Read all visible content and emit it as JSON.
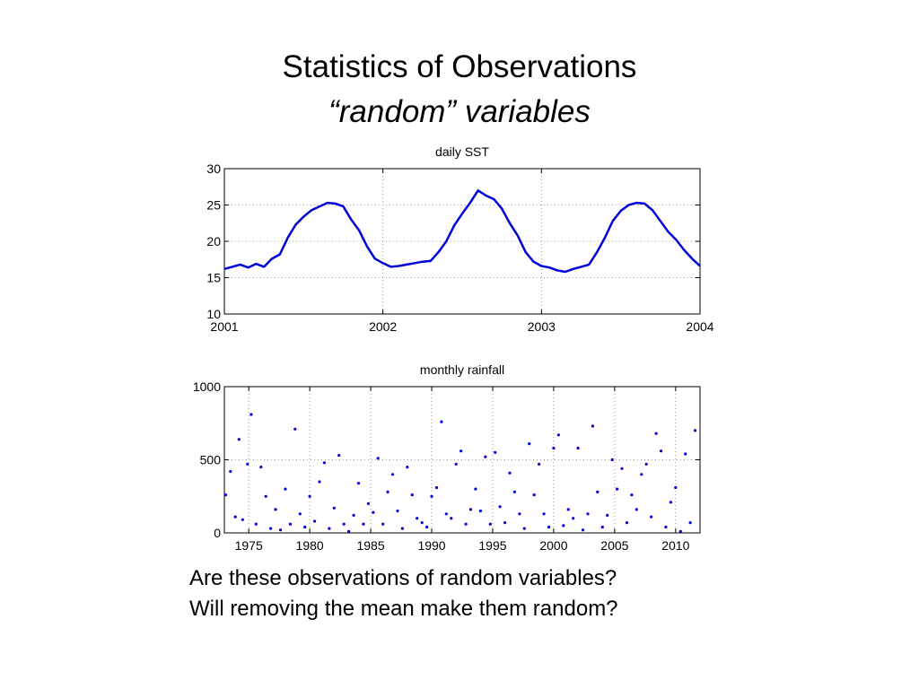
{
  "slide": {
    "title_line1": "Statistics of Observations",
    "title_line2": "“random” variables",
    "question1": "Are these observations of random variables?",
    "question2": "Will removing the mean make them random?"
  },
  "chart_data": [
    {
      "type": "line",
      "title": "daily SST",
      "xlabel": "",
      "ylabel": "",
      "x_ticks": [
        "2001",
        "2002",
        "2003",
        "2004"
      ],
      "y_ticks": [
        "10",
        "15",
        "20",
        "25",
        "30"
      ],
      "xlim": [
        2001,
        2004
      ],
      "ylim": [
        10,
        30
      ],
      "grid": true,
      "color": "#0000dd",
      "series": [
        {
          "x": [
            2001.0,
            2001.05,
            2001.1,
            2001.15,
            2001.2,
            2001.25,
            2001.3,
            2001.35,
            2001.4,
            2001.45,
            2001.5,
            2001.55,
            2001.6,
            2001.65,
            2001.7,
            2001.75,
            2001.8,
            2001.85,
            2001.9,
            2001.95,
            2002.0,
            2002.05,
            2002.1,
            2002.15,
            2002.2,
            2002.25,
            2002.3,
            2002.35,
            2002.4,
            2002.45,
            2002.5,
            2002.55,
            2002.6,
            2002.65,
            2002.7,
            2002.75,
            2002.8,
            2002.85,
            2002.9,
            2002.95,
            2003.0,
            2003.05,
            2003.1,
            2003.15,
            2003.2,
            2003.25,
            2003.3,
            2003.35,
            2003.4,
            2003.45,
            2003.5,
            2003.55,
            2003.6,
            2003.65,
            2003.7,
            2003.75,
            2003.8,
            2003.85,
            2003.9,
            2003.95,
            2004.0
          ],
          "values": [
            16.2,
            16.5,
            16.8,
            16.4,
            16.9,
            16.5,
            17.6,
            18.2,
            20.5,
            22.3,
            23.4,
            24.3,
            24.8,
            25.3,
            25.2,
            24.8,
            23.0,
            21.5,
            19.3,
            17.6,
            17.0,
            16.5,
            16.6,
            16.8,
            17.0,
            17.2,
            17.3,
            18.5,
            20.0,
            22.2,
            23.8,
            25.3,
            27.0,
            26.3,
            25.8,
            24.5,
            22.5,
            20.8,
            18.5,
            17.2,
            16.6,
            16.4,
            16.0,
            15.8,
            16.2,
            16.5,
            16.8,
            18.5,
            20.5,
            22.8,
            24.2,
            25.0,
            25.3,
            25.2,
            24.3,
            22.8,
            21.3,
            20.2,
            18.8,
            17.6,
            16.6
          ]
        }
      ]
    },
    {
      "type": "scatter",
      "title": "monthly rainfall",
      "xlabel": "",
      "ylabel": "",
      "x_ticks": [
        "1975",
        "1980",
        "1985",
        "1990",
        "1995",
        "2000",
        "2005",
        "2010"
      ],
      "y_ticks": [
        "0",
        "500",
        "1000"
      ],
      "xlim": [
        1973,
        2012
      ],
      "ylim": [
        0,
        1000
      ],
      "grid": true,
      "color": "#0000dd",
      "series": [
        {
          "x": [
            1973.1,
            1973.5,
            1973.9,
            1974.2,
            1974.5,
            1974.9,
            1975.2,
            1975.6,
            1976.0,
            1976.4,
            1976.8,
            1977.2,
            1977.6,
            1978.0,
            1978.4,
            1978.8,
            1979.2,
            1979.6,
            1980.0,
            1980.4,
            1980.8,
            1981.2,
            1981.6,
            1982.0,
            1982.4,
            1982.8,
            1983.2,
            1983.6,
            1984.0,
            1984.4,
            1984.8,
            1985.2,
            1985.6,
            1986.0,
            1986.4,
            1986.8,
            1987.2,
            1987.6,
            1988.0,
            1988.4,
            1988.8,
            1989.2,
            1989.6,
            1990.0,
            1990.4,
            1990.8,
            1991.2,
            1991.6,
            1992.0,
            1992.4,
            1992.8,
            1993.2,
            1993.6,
            1994.0,
            1994.4,
            1994.8,
            1995.2,
            1995.6,
            1996.0,
            1996.4,
            1996.8,
            1997.2,
            1997.6,
            1998.0,
            1998.4,
            1998.8,
            1999.2,
            1999.6,
            2000.0,
            2000.4,
            2000.8,
            2001.2,
            2001.6,
            2002.0,
            2002.4,
            2002.8,
            2003.2,
            2003.6,
            2004.0,
            2004.4,
            2004.8,
            2005.2,
            2005.6,
            2006.0,
            2006.4,
            2006.8,
            2007.2,
            2007.6,
            2008.0,
            2008.4,
            2008.8,
            2009.2,
            2009.6,
            2010.0,
            2010.4,
            2010.8,
            2011.2,
            2011.6
          ],
          "values": [
            260,
            420,
            110,
            640,
            90,
            470,
            810,
            60,
            450,
            250,
            30,
            160,
            20,
            300,
            60,
            710,
            130,
            40,
            250,
            80,
            350,
            480,
            30,
            170,
            530,
            60,
            10,
            120,
            340,
            60,
            200,
            140,
            510,
            60,
            280,
            400,
            150,
            30,
            450,
            260,
            100,
            70,
            40,
            250,
            310,
            760,
            130,
            100,
            470,
            560,
            60,
            160,
            300,
            150,
            520,
            60,
            550,
            180,
            70,
            410,
            280,
            130,
            30,
            610,
            260,
            470,
            130,
            40,
            580,
            670,
            50,
            160,
            100,
            580,
            20,
            130,
            730,
            280,
            40,
            120,
            500,
            300,
            440,
            70,
            260,
            160,
            400,
            470,
            110,
            680,
            560,
            40,
            210,
            310,
            10,
            540,
            70,
            700
          ]
        }
      ]
    }
  ]
}
